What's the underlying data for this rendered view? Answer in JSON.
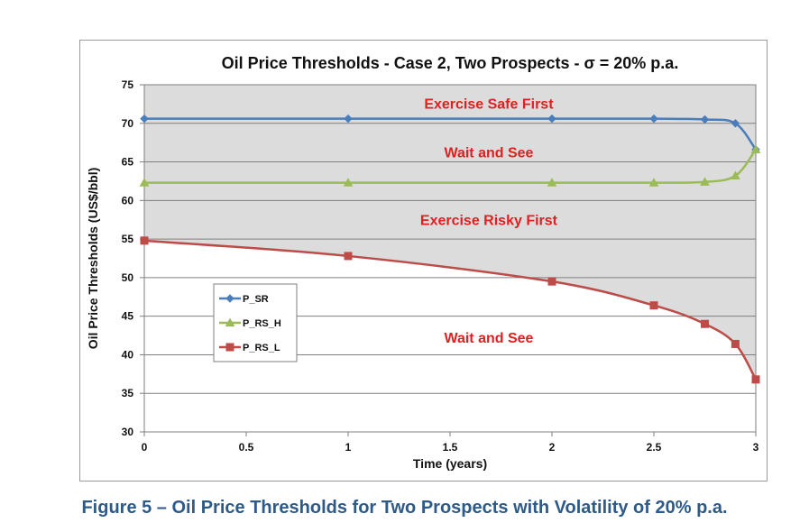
{
  "chart_data": {
    "type": "line",
    "title": "Oil Price Thresholds - Case 2, Two Prospects - σ = 20% p.a.",
    "xlabel": "Time (years)",
    "ylabel": "Oil Price Thresholds (US$/bbl)",
    "xlim": [
      0,
      3
    ],
    "ylim": [
      30,
      75
    ],
    "x_ticks": [
      "0",
      "0.5",
      "1",
      "1.5",
      "2",
      "2.5",
      "3"
    ],
    "y_ticks": [
      "30",
      "35",
      "40",
      "45",
      "50",
      "55",
      "60",
      "65",
      "70",
      "75"
    ],
    "grid": "horizontal",
    "legend_position": "left",
    "series": [
      {
        "name": "P_SR",
        "color": "#4a7ebb",
        "marker": "diamond",
        "x": [
          0,
          1,
          2,
          2.5,
          2.75,
          2.9,
          3
        ],
        "y": [
          70.6,
          70.6,
          70.6,
          70.6,
          70.5,
          70.0,
          66.6
        ]
      },
      {
        "name": "P_RS_H",
        "color": "#9bbb59",
        "marker": "triangle",
        "x": [
          0,
          1,
          2,
          2.5,
          2.75,
          2.9,
          3
        ],
        "y": [
          62.3,
          62.3,
          62.3,
          62.3,
          62.4,
          63.2,
          66.6
        ]
      },
      {
        "name": "P_RS_L",
        "color": "#be4b48",
        "marker": "square",
        "x": [
          0,
          1,
          2,
          2.5,
          2.75,
          2.9,
          3
        ],
        "y": [
          54.8,
          52.8,
          49.5,
          46.4,
          44.0,
          41.4,
          36.8
        ]
      }
    ],
    "annotations": [
      {
        "text": "Exercise Safe First",
        "x": 1.69,
        "y": 72.6,
        "color": "#e02020"
      },
      {
        "text": "Wait and See",
        "x": 1.69,
        "y": 66.3,
        "color": "#e02020"
      },
      {
        "text": "Exercise Risky First",
        "x": 1.69,
        "y": 57.5,
        "color": "#e02020"
      },
      {
        "text": "Wait and See",
        "x": 1.69,
        "y": 42.3,
        "color": "#e02020"
      }
    ],
    "shaded_region": {
      "between": [
        "P_RS_L",
        "top"
      ],
      "color": "#dcdcdc"
    }
  },
  "caption": "Figure 5 – Oil Price Thresholds for Two Prospects with Volatility of 20% p.a."
}
